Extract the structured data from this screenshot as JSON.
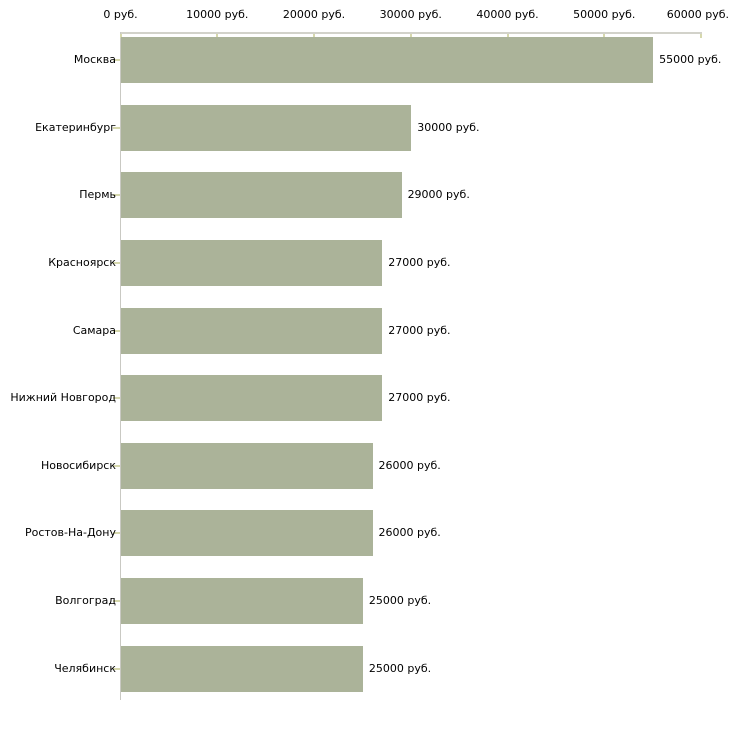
{
  "chart_data": {
    "type": "bar",
    "orientation": "horizontal",
    "title": "",
    "xlabel": "",
    "ylabel": "",
    "grid": false,
    "legend": false,
    "categories": [
      "Москва",
      "Екатеринбург",
      "Пермь",
      "Красноярск",
      "Самара",
      "Нижний Новгород",
      "Новосибирск",
      "Ростов-На-Дону",
      "Волгоград",
      "Челябинск"
    ],
    "values": [
      55000,
      30000,
      29000,
      27000,
      27000,
      27000,
      26000,
      26000,
      25000,
      25000
    ],
    "value_labels": [
      "55000 руб.",
      "30000 руб.",
      "29000 руб.",
      "27000 руб.",
      "27000 руб.",
      "27000 руб.",
      "26000 руб.",
      "26000 руб.",
      "25000 руб.",
      "25000 руб."
    ],
    "x_axis": {
      "position": "top",
      "min": 0,
      "max": 60000,
      "tick_step": 10000,
      "tick_labels": [
        "0 руб.",
        "10000 руб.",
        "20000 руб.",
        "30000 руб.",
        "40000 руб.",
        "50000 руб.",
        "60000 руб."
      ]
    },
    "colors": {
      "bar": "#abb399",
      "axis_line": "#d2d2ca",
      "y_axis_line": "#c9c9c3",
      "tick_mark": "#d6d8ad",
      "text": "#000000",
      "background": "#ffffff"
    }
  }
}
